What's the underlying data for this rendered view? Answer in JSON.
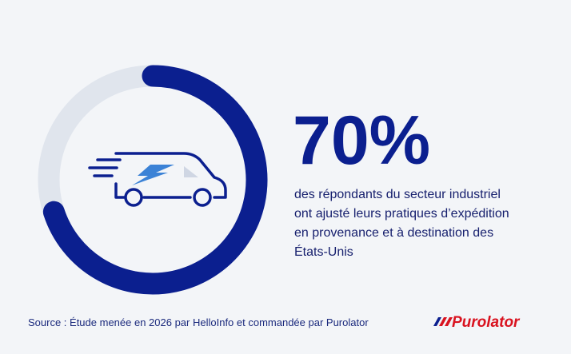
{
  "chart_data": {
    "type": "donut",
    "values": [
      70
    ],
    "value_labels": [
      "70%"
    ],
    "color": "#0b1f8f",
    "track_color": "#e0e5ed",
    "description": [
      "des répondants du secteur industriel",
      "ont ajusté leurs pratiques d’expédition",
      "en provenance et à destination des",
      "États-Unis"
    ],
    "source": "Source : Étude menée en 2026 par HelloInfo et commandée par Purolator",
    "brand": "Purolator"
  }
}
